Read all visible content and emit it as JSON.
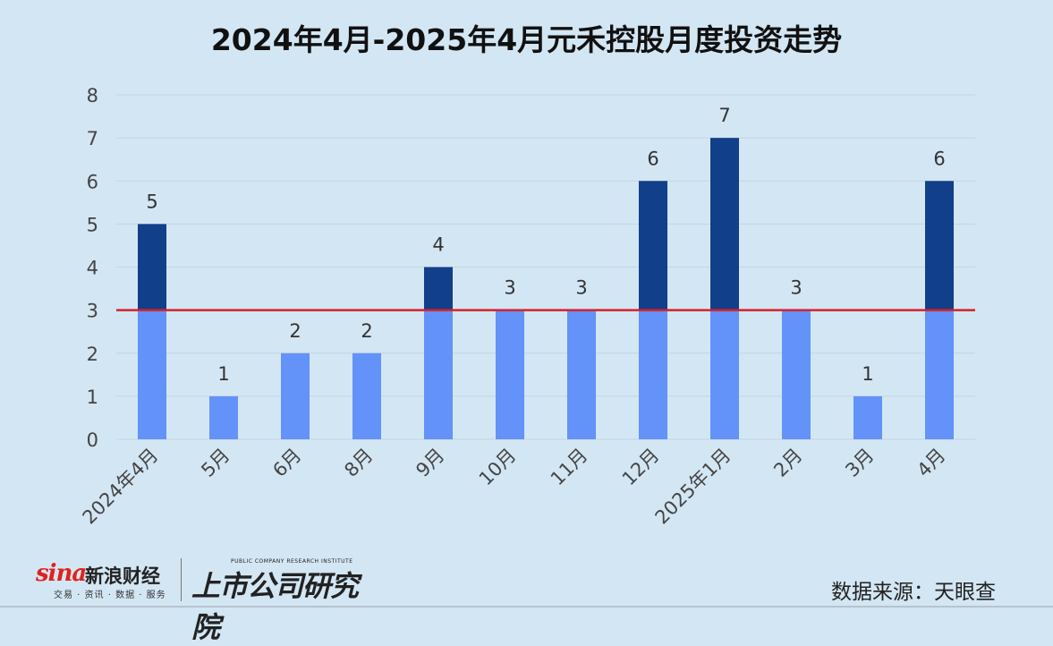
{
  "chart_data": {
    "type": "bar",
    "title": "2024年4月-2025年4月元禾控股月度投资走势",
    "categories": [
      "2024年4月",
      "5月",
      "6月",
      "8月",
      "9月",
      "10月",
      "11月",
      "12月",
      "2025年1月",
      "2月",
      "3月",
      "4月"
    ],
    "values": [
      5,
      1,
      2,
      2,
      4,
      3,
      3,
      6,
      7,
      3,
      1,
      6
    ],
    "ylim": [
      0,
      8
    ],
    "yticks": [
      0,
      1,
      2,
      3,
      4,
      5,
      6,
      7,
      8
    ],
    "reference_line": 3,
    "grid": true,
    "legend": "none",
    "colors": {
      "below_reference": "#6392f8",
      "above_reference": "#123f8a",
      "reference_line": "#d6212a"
    }
  },
  "source_text": "数据来源：天眼查",
  "logos": {
    "sina_wordmark": "sina",
    "sina_name": "新浪财经",
    "sina_tagline": "交易 · 资讯 · 数据 · 服务",
    "institute_name": "上市公司研究院",
    "institute_english": "PUBLIC COMPANY RESEARCH INSTITUTE"
  }
}
